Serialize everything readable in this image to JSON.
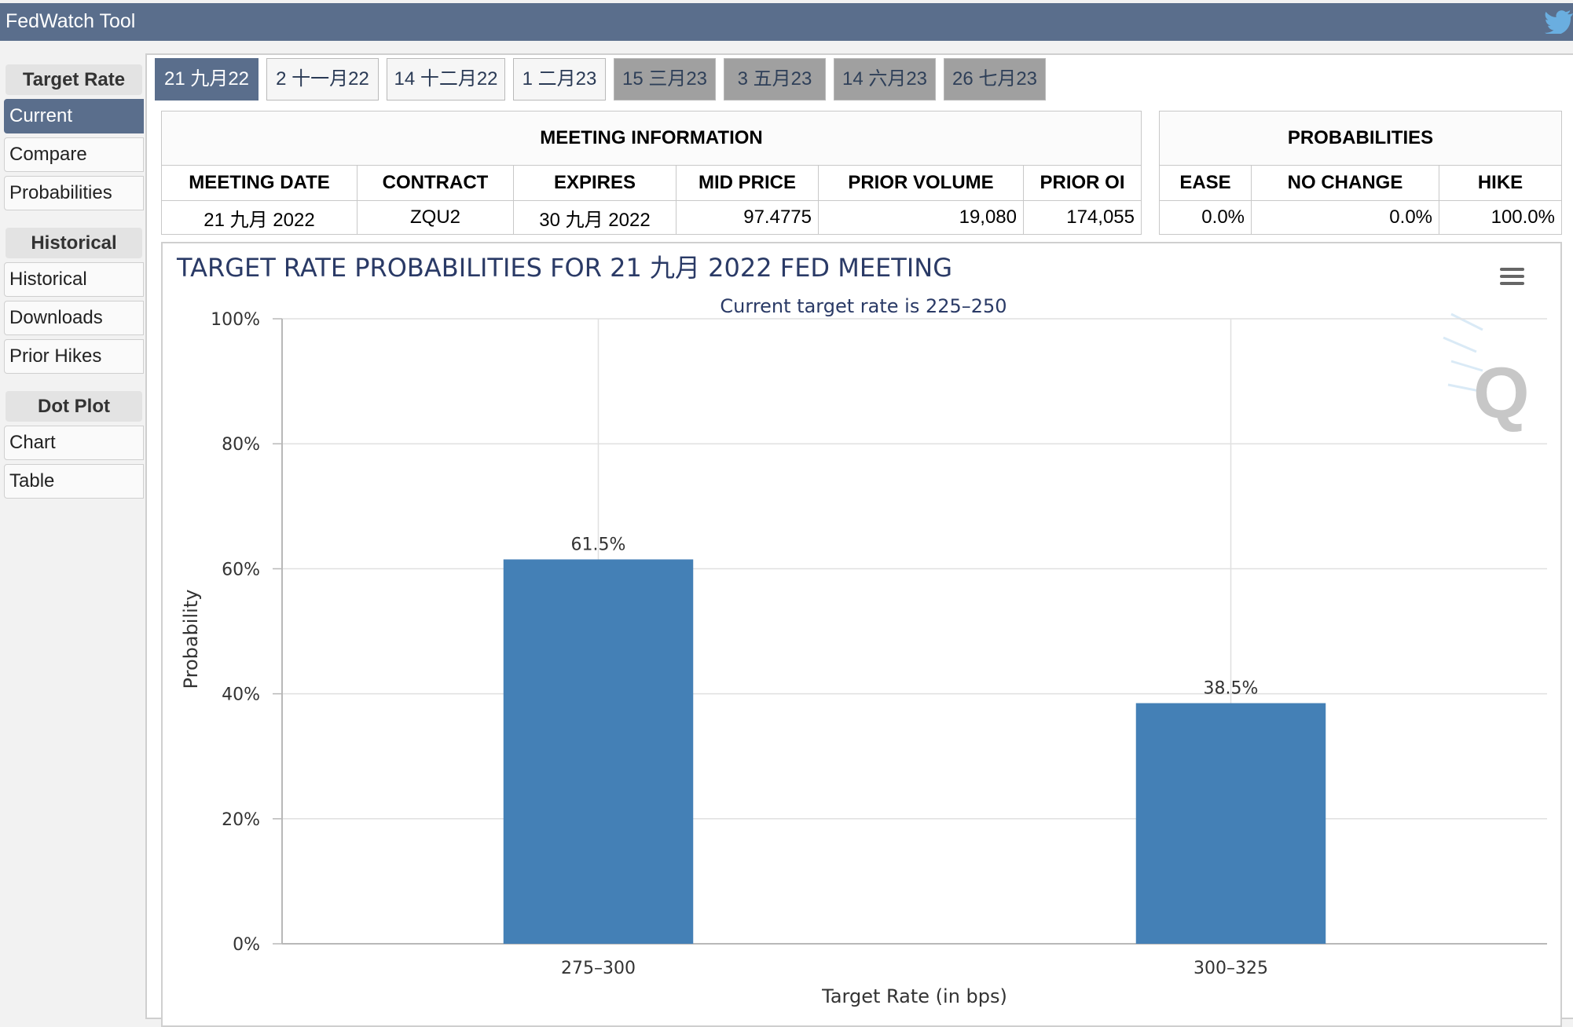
{
  "app": {
    "title": "FedWatch Tool"
  },
  "icons": {
    "twitter": "twitter-icon",
    "menu": "hamburger-menu-icon",
    "watermark": "q-logo-icon"
  },
  "colors": {
    "header": "#5a6e8c",
    "bar": "#4480b6",
    "future_tab": "#a0a0a0"
  },
  "sidebar": {
    "sections": [
      {
        "heading": "Target Rate",
        "items": [
          "Current",
          "Compare",
          "Probabilities"
        ]
      },
      {
        "heading": "Historical",
        "items": [
          "Historical",
          "Downloads",
          "Prior Hikes"
        ]
      },
      {
        "heading": "Dot Plot",
        "items": [
          "Chart",
          "Table"
        ]
      }
    ],
    "active_item": "Current"
  },
  "tabs": {
    "items": [
      "21 九月22",
      "2 十一月22",
      "14 十二月22",
      "1 二月23",
      "15 三月23",
      "3 五月23",
      "14 六月23",
      "26 七月23"
    ],
    "active_index": 0,
    "future_from_index": 4
  },
  "meeting_info": {
    "caption": "MEETING INFORMATION",
    "headers": [
      "MEETING DATE",
      "CONTRACT",
      "EXPIRES",
      "MID PRICE",
      "PRIOR VOLUME",
      "PRIOR OI"
    ],
    "row": [
      "21 九月 2022",
      "ZQU2",
      "30 九月 2022",
      "97.4775",
      "19,080",
      "174,055"
    ]
  },
  "probabilities": {
    "caption": "PROBABILITIES",
    "headers": [
      "EASE",
      "NO CHANGE",
      "HIKE"
    ],
    "row": [
      "0.0%",
      "0.0%",
      "100.0%"
    ]
  },
  "chart_data": {
    "type": "bar",
    "title": "TARGET RATE PROBABILITIES FOR 21 九月 2022 FED MEETING",
    "subtitle": "Current target rate is 225–250",
    "categories": [
      "275–300",
      "300–325"
    ],
    "values": [
      61.5,
      38.5
    ],
    "data_labels": [
      "61.5%",
      "38.5%"
    ],
    "xlabel": "Target Rate (in bps)",
    "ylabel": "Probability",
    "ylim": [
      0,
      100
    ],
    "yticks": [
      0,
      20,
      40,
      60,
      80,
      100
    ],
    "ytick_labels": [
      "0%",
      "20%",
      "40%",
      "60%",
      "80%",
      "100%"
    ],
    "grid": true,
    "legend": "none"
  }
}
